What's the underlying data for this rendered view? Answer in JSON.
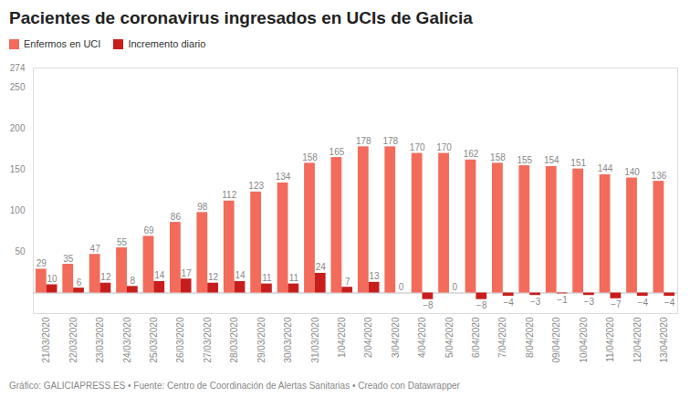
{
  "chart_data": {
    "type": "bar",
    "title": "Pacientes de coronavirus ingresados en UCIs de Galicia",
    "caption": "Gráfico: GALICIAPRESS.ES • Fuente: Centro de Coordinación de Alertas Sanitarias • Creado con Datawrapper",
    "categories": [
      "21/03/2020",
      "22/03/2020",
      "23/03/2020",
      "24/03/2020",
      "25/03/2020",
      "26/03/2020",
      "27/03/2020",
      "28/03/2020",
      "29/03/2020",
      "30/03/2020",
      "31/03/2020",
      "1/04/2020",
      "2/04/2020",
      "3/04/2020",
      "4/04/2020",
      "5/04/2020",
      "6/04/2020",
      "7/04/2020",
      "8/04/2020",
      "09/04/2020",
      "10/04/2020",
      "11/04/2020",
      "12/04/2020",
      "13/04/2020"
    ],
    "series": [
      {
        "name": "Enfermos en UCI",
        "color": "#f26b5b",
        "values": [
          29,
          35,
          47,
          55,
          69,
          86,
          98,
          112,
          123,
          134,
          158,
          165,
          178,
          178,
          170,
          170,
          162,
          158,
          155,
          154,
          151,
          144,
          140,
          136
        ]
      },
      {
        "name": "Incremento diario",
        "color": "#c71e1d",
        "values": [
          10,
          6,
          12,
          8,
          14,
          17,
          12,
          14,
          11,
          11,
          24,
          7,
          13,
          0,
          -8,
          0,
          -8,
          -4,
          -3,
          -1,
          -3,
          -7,
          -4,
          -4
        ],
        "value_labels": [
          "10",
          "6",
          "12",
          "8",
          "14",
          "17",
          "12",
          "14",
          "11",
          "11",
          "24",
          "7",
          "13",
          "0",
          "−8",
          "0",
          "−8",
          "−4",
          "−3",
          "−1",
          "−3",
          "−7",
          "−4",
          "−4"
        ]
      }
    ],
    "ylim": [
      -25,
      274
    ],
    "yticks": [
      50,
      100,
      150,
      200,
      250,
      274
    ],
    "grid": false,
    "legend": "top-left",
    "data_labels": true
  }
}
